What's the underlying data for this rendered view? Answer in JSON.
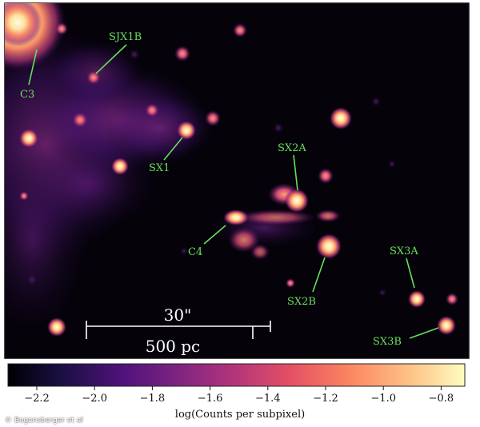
{
  "image": {
    "description_colors": {
      "background": "#05020a",
      "frame": "#111111",
      "label_color": "#66e05a"
    },
    "sources": [
      "C3",
      "SJX1B",
      "SX1",
      "SX2A",
      "C4",
      "SX2B",
      "SX3A",
      "SX3B"
    ]
  },
  "scalebar": {
    "angular": "30\"",
    "physical": "500 pc"
  },
  "colorbar": {
    "colormap": "magma",
    "ticks": [
      "−2.2",
      "−2.0",
      "−1.8",
      "−1.6",
      "−1.4",
      "−1.2",
      "−1.0",
      "−0.8"
    ],
    "label": "log(Counts per subpixel)"
  },
  "credit": "© Bogensberger et al"
}
